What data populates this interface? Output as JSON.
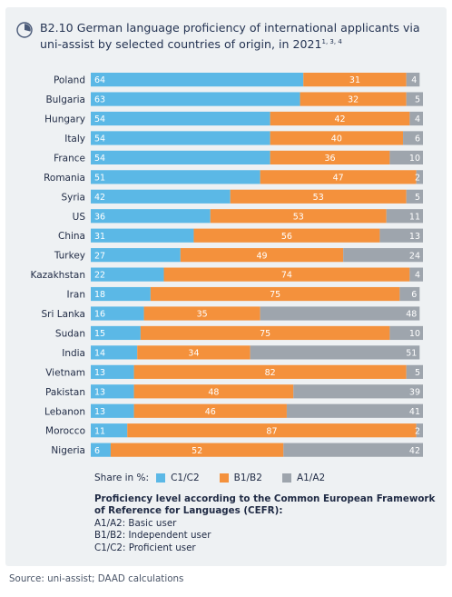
{
  "title": {
    "code": "B2.10",
    "text": "German language proficiency of international applicants via uni-assist by selected countries of origin, in 2021",
    "sup": "1, 3, 4"
  },
  "chart_data": {
    "type": "bar",
    "orientation": "horizontal",
    "stacked": true,
    "categories": [
      "Poland",
      "Bulgaria",
      "Hungary",
      "Italy",
      "France",
      "Romania",
      "Syria",
      "US",
      "China",
      "Turkey",
      "Kazakhstan",
      "Iran",
      "Sri Lanka",
      "Sudan",
      "India",
      "Vietnam",
      "Pakistan",
      "Lebanon",
      "Morocco",
      "Nigeria"
    ],
    "series": [
      {
        "name": "C1/C2",
        "color": "#5bb8e6",
        "values": [
          64,
          63,
          54,
          54,
          54,
          51,
          42,
          36,
          31,
          27,
          22,
          18,
          16,
          15,
          14,
          13,
          13,
          13,
          11,
          6
        ]
      },
      {
        "name": "B1/B2",
        "color": "#f4913c",
        "values": [
          31,
          32,
          42,
          40,
          36,
          47,
          53,
          53,
          56,
          49,
          74,
          75,
          35,
          75,
          34,
          82,
          48,
          46,
          87,
          52
        ]
      },
      {
        "name": "A1/A2",
        "color": "#9ea5ad",
        "values": [
          4,
          5,
          4,
          6,
          10,
          2,
          5,
          11,
          13,
          24,
          4,
          6,
          48,
          10,
          51,
          5,
          39,
          41,
          2,
          42
        ]
      }
    ],
    "xlim": [
      0,
      100
    ],
    "legend_title": "Share in %:",
    "legend_position": "bottom"
  },
  "notes": {
    "heading": "Proficiency level according to the Common European Framework of Reference for Languages (CEFR):",
    "lines": [
      "A1/A2: Basic user",
      "B1/B2: Independent user",
      "C1/C2: Proficient user"
    ]
  },
  "source": "Source: uni-assist; DAAD calculations"
}
